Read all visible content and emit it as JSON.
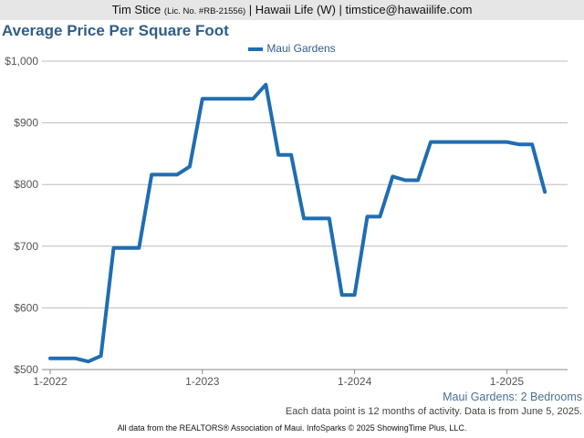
{
  "header": {
    "agent_name": "Tim Stice",
    "license": "(Lic. No. #RB-21556)",
    "rest": "| Hawaii Life (W) | timstice@hawaiilife.com"
  },
  "chart_data": {
    "type": "line",
    "title": "Average Price Per Square Foot",
    "subtitle": "Maui Gardens: 2 Bedrooms",
    "note": "Each data point is 12 months of activity. Data is from June 5, 2025.",
    "footer": "All data from the REALTORS® Association of Maui. InfoSparks © 2025 ShowingTime Plus, LLC.",
    "xlabel": "",
    "ylabel": "",
    "ylim": [
      500,
      1000
    ],
    "yticks": [
      500,
      600,
      700,
      800,
      900,
      1000
    ],
    "ytick_labels": [
      "$500",
      "$600",
      "$700",
      "$800",
      "$900",
      "$1,000"
    ],
    "xticks": [
      "2022-01",
      "2023-01",
      "2024-01",
      "2025-01"
    ],
    "xtick_labels": [
      "1-2022",
      "1-2023",
      "1-2024",
      "1-2025"
    ],
    "grid": true,
    "legend": "top-center",
    "series": [
      {
        "name": "Maui Gardens",
        "color": "#1f6db3",
        "x": [
          "2022-01",
          "2022-02",
          "2022-03",
          "2022-04",
          "2022-05",
          "2022-06",
          "2022-07",
          "2022-08",
          "2022-09",
          "2022-10",
          "2022-11",
          "2022-12",
          "2023-01",
          "2023-02",
          "2023-03",
          "2023-04",
          "2023-05",
          "2023-06",
          "2023-07",
          "2023-08",
          "2023-09",
          "2023-10",
          "2023-11",
          "2023-12",
          "2024-01",
          "2024-02",
          "2024-03",
          "2024-04",
          "2024-05",
          "2024-06",
          "2024-07",
          "2024-08",
          "2024-09",
          "2024-10",
          "2024-11",
          "2024-12",
          "2025-01",
          "2025-02",
          "2025-03",
          "2025-04"
        ],
        "values": [
          518,
          518,
          518,
          513,
          522,
          697,
          697,
          697,
          816,
          816,
          816,
          829,
          939,
          939,
          939,
          939,
          939,
          962,
          848,
          848,
          745,
          745,
          745,
          621,
          621,
          748,
          748,
          813,
          807,
          807,
          869,
          869,
          869,
          869,
          869,
          869,
          869,
          865,
          865,
          788
        ]
      }
    ]
  }
}
